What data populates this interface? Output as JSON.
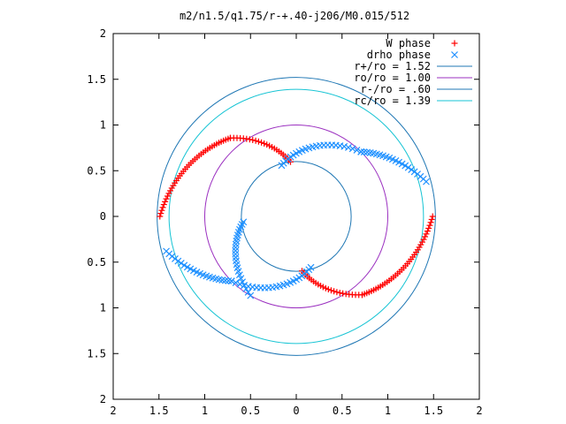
{
  "chart_data": {
    "type": "scatter",
    "title": "m2/n1.5/q1.75/r-+.40-j206/M0.015/512",
    "xlim": [
      -2,
      2
    ],
    "ylim": [
      -2,
      2
    ],
    "x_ticks": [
      {
        "value": -2,
        "label": "2"
      },
      {
        "value": -1.5,
        "label": "1.5"
      },
      {
        "value": -1,
        "label": "1"
      },
      {
        "value": -0.5,
        "label": "0.5"
      },
      {
        "value": 0,
        "label": "0"
      },
      {
        "value": 0.5,
        "label": "0.5"
      },
      {
        "value": 1,
        "label": "1"
      },
      {
        "value": 1.5,
        "label": "1.5"
      },
      {
        "value": 2,
        "label": "2"
      }
    ],
    "y_ticks": [
      {
        "value": 2,
        "label": "2"
      },
      {
        "value": 1.5,
        "label": "1.5"
      },
      {
        "value": 1,
        "label": "1"
      },
      {
        "value": 0.5,
        "label": "0.5"
      },
      {
        "value": 0,
        "label": "0"
      },
      {
        "value": -0.5,
        "label": "0.5"
      },
      {
        "value": -1,
        "label": "1"
      },
      {
        "value": -1.5,
        "label": "1.5"
      },
      {
        "value": -2,
        "label": "2"
      }
    ],
    "legend_position": "top-right",
    "grid": false,
    "series": [
      {
        "name": "W phase",
        "marker": "plus",
        "color": "#ff0000",
        "arcs": [
          {
            "theta_start": 180,
            "theta_end": 130,
            "r_start": 1.49,
            "r_end": 1.12,
            "count": 40
          },
          {
            "theta_start": 130,
            "theta_end": 96,
            "r_start": 1.12,
            "r_end": 0.6,
            "count": 24
          },
          {
            "theta_start": 0,
            "theta_end": -50,
            "r_start": 1.49,
            "r_end": 1.12,
            "count": 40
          },
          {
            "theta_start": -50,
            "theta_end": -84,
            "r_start": 1.12,
            "r_end": 0.6,
            "count": 24
          }
        ]
      },
      {
        "name": "drho phase",
        "marker": "cross",
        "color": "#1e90ff",
        "arcs": [
          {
            "theta_start": 106,
            "theta_end": 45,
            "r_start": 0.58,
            "r_end": 1.0,
            "count": 24
          },
          {
            "theta_start": 45,
            "theta_end": 15,
            "r_start": 1.0,
            "r_end": 1.47,
            "count": 22
          },
          {
            "theta_start": 186,
            "theta_end": 240,
            "r_start": 0.58,
            "r_end": 1.0,
            "count": 24
          },
          {
            "theta_start": -74,
            "theta_end": -135,
            "r_start": 0.58,
            "r_end": 1.0,
            "count": 24
          },
          {
            "theta_start": -135,
            "theta_end": -165,
            "r_start": 1.0,
            "r_end": 1.47,
            "count": 22
          }
        ]
      }
    ],
    "circles": [
      {
        "name": "r+/ro = 1.52",
        "radius": 1.52,
        "color": "#1f77b4"
      },
      {
        "name": "ro/ro = 1.00",
        "radius": 1.0,
        "color": "#9b30c0"
      },
      {
        "name": "r-/ro = .60",
        "radius": 0.6,
        "color": "#1f77b4"
      },
      {
        "name": "rc/ro = 1.39",
        "radius": 1.39,
        "color": "#17c4d4"
      }
    ]
  }
}
